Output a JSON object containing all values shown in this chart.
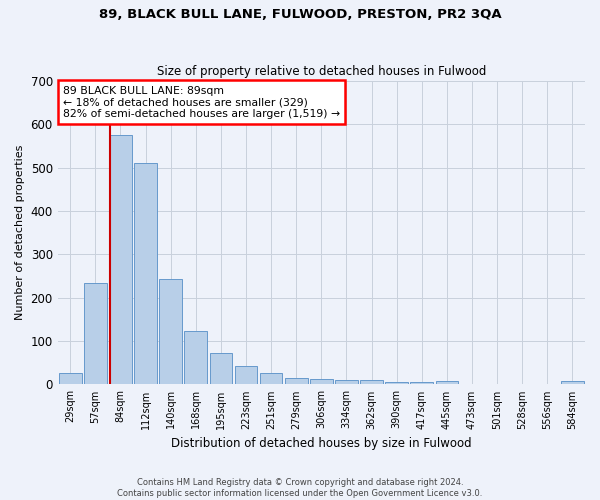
{
  "title": "89, BLACK BULL LANE, FULWOOD, PRESTON, PR2 3QA",
  "subtitle": "Size of property relative to detached houses in Fulwood",
  "xlabel": "Distribution of detached houses by size in Fulwood",
  "ylabel": "Number of detached properties",
  "footer_line1": "Contains HM Land Registry data © Crown copyright and database right 2024.",
  "footer_line2": "Contains public sector information licensed under the Open Government Licence v3.0.",
  "annotation_line1": "89 BLACK BULL LANE: 89sqm",
  "annotation_line2": "← 18% of detached houses are smaller (329)",
  "annotation_line3": "82% of semi-detached houses are larger (1,519) →",
  "categories": [
    "29sqm",
    "57sqm",
    "84sqm",
    "112sqm",
    "140sqm",
    "168sqm",
    "195sqm",
    "223sqm",
    "251sqm",
    "279sqm",
    "306sqm",
    "334sqm",
    "362sqm",
    "390sqm",
    "417sqm",
    "445sqm",
    "473sqm",
    "501sqm",
    "528sqm",
    "556sqm",
    "584sqm"
  ],
  "values": [
    27,
    234,
    575,
    510,
    243,
    124,
    72,
    42,
    27,
    15,
    13,
    10,
    11,
    6,
    6,
    9,
    0,
    0,
    0,
    0,
    8
  ],
  "bar_color": "#b8cfe8",
  "bar_edge_color": "#6699cc",
  "highlight_bar_index": 2,
  "highlight_line_color": "#cc0000",
  "grid_color": "#c8d0dc",
  "background_color": "#eef2fa",
  "ylim": [
    0,
    700
  ],
  "yticks": [
    0,
    100,
    200,
    300,
    400,
    500,
    600,
    700
  ]
}
